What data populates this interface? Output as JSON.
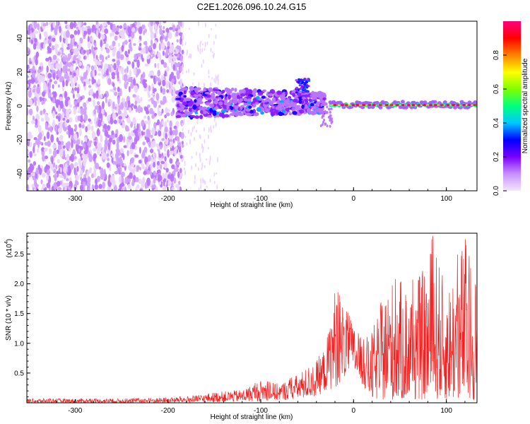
{
  "title": "C2E1.2026.096.10.24.G15",
  "chart_data": [
    {
      "type": "heatmap",
      "xlabel": "Height of straight line (km)",
      "ylabel": "Frequency (Hz)",
      "xlim": [
        -352,
        133
      ],
      "ylim": [
        -50,
        50
      ],
      "x_ticks": [
        -300,
        -200,
        -100,
        0,
        100
      ],
      "y_ticks": [
        -40,
        -20,
        0,
        20,
        40
      ],
      "colorbar": {
        "label": "Normalized spectral amplitude",
        "range": [
          0,
          1
        ],
        "ticks": [
          0.0,
          0.2,
          0.4,
          0.6,
          0.8
        ],
        "colors": [
          "#f4e6ff",
          "#c890ff",
          "#7a00ff",
          "#0000ff",
          "#00c8ff",
          "#00ff80",
          "#80ff00",
          "#ffff00",
          "#ff8000",
          "#ff0000",
          "#ff0080"
        ]
      },
      "regions": [
        {
          "x": [
            -352,
            -182
          ],
          "freq": [
            -50,
            50
          ],
          "amplitude": 0.1,
          "description": "noise"
        },
        {
          "x": [
            -190,
            -30
          ],
          "freq": [
            -10,
            15
          ],
          "amplitude": 0.35
        },
        {
          "x": [
            -60,
            -50
          ],
          "freq": [
            8,
            16
          ],
          "amplitude": 0.45
        },
        {
          "x": [
            -25,
            133
          ],
          "freq": [
            -2,
            4
          ],
          "amplitude": 0.9
        }
      ]
    },
    {
      "type": "line",
      "xlabel": "Height of straight line (km)",
      "ylabel": "SNR (10 * v/v)",
      "y_scale_label": "(x10",
      "y_scale_exponent": "4",
      "xlim": [
        -352,
        133
      ],
      "ylim": [
        0,
        2.85
      ],
      "x_ticks": [
        -300,
        -200,
        -100,
        0,
        100
      ],
      "y_ticks": [
        0.5,
        1.0,
        1.5,
        2.0,
        2.5
      ],
      "color": "#ee2222",
      "envelope": {
        "x": [
          -352,
          -250,
          -200,
          -170,
          -150,
          -120,
          -100,
          -80,
          -60,
          -40,
          -30,
          -20,
          -10,
          0,
          10,
          20,
          30,
          40,
          60,
          80,
          85,
          100,
          110,
          120,
          125,
          133
        ],
        "max": [
          0.07,
          0.07,
          0.09,
          0.12,
          0.18,
          0.22,
          0.38,
          0.32,
          0.48,
          0.72,
          0.95,
          1.95,
          1.65,
          1.3,
          1.05,
          1.2,
          1.72,
          2.1,
          2.02,
          2.3,
          2.83,
          1.9,
          2.4,
          2.85,
          2.5,
          2.15
        ],
        "min": [
          0.0,
          0.0,
          0.0,
          0.0,
          0.01,
          0.02,
          0.03,
          0.04,
          0.06,
          0.1,
          0.2,
          0.25,
          0.4,
          0.55,
          0.3,
          0.05,
          0.05,
          0.05,
          0.05,
          0.05,
          0.05,
          0.05,
          0.05,
          0.05,
          0.05,
          0.05
        ]
      }
    }
  ]
}
